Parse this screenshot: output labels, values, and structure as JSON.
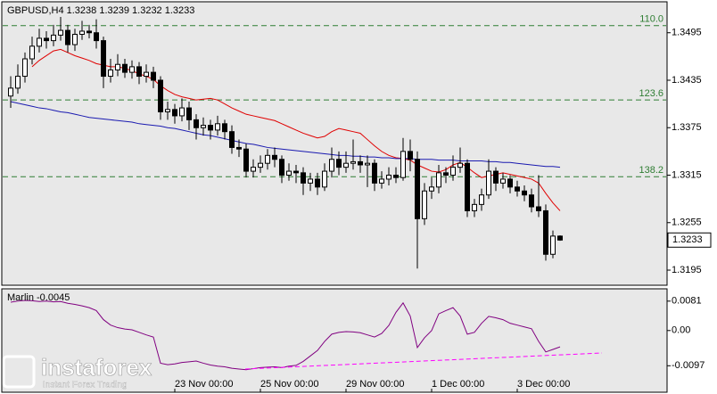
{
  "chart_data": [
    {
      "type": "candlestick",
      "title": "GBPUSD,H4  1.3238 1.3239 1.3232 1.3233",
      "categories": [
        null,
        null,
        null,
        null,
        null,
        null,
        null,
        null,
        null,
        null,
        null,
        null,
        null,
        null,
        null,
        null,
        null,
        null,
        null,
        null,
        null,
        null,
        null,
        "23 Nov 00:00",
        null,
        null,
        null,
        null,
        null,
        null,
        null,
        null,
        null,
        null,
        null,
        "25 Nov 00:00",
        null,
        null,
        null,
        null,
        null,
        null,
        null,
        null,
        null,
        null,
        null,
        "29 Nov 00:00",
        null,
        null,
        null,
        null,
        null,
        null,
        null,
        null,
        null,
        null,
        null,
        "1 Dec 00:00",
        null,
        null,
        null,
        null,
        null,
        null,
        null,
        null,
        null,
        null,
        null,
        "3 Dec 00:00",
        null,
        null,
        null,
        null,
        null,
        null
      ],
      "open": [
        1.3415,
        1.3425,
        1.344,
        1.3462,
        1.3478,
        1.3488,
        1.3485,
        1.3492,
        1.3498,
        1.348,
        1.3493,
        1.3497,
        1.3495,
        1.3485,
        1.344,
        1.3448,
        1.3455,
        1.3445,
        1.3452,
        1.344,
        1.3445,
        1.3435,
        1.3395,
        1.3398,
        1.339,
        1.34,
        1.3385,
        1.3375,
        1.3378,
        1.3372,
        1.338,
        1.337,
        1.335,
        1.3348,
        1.332,
        1.3325,
        1.333,
        1.334,
        1.3335,
        1.3315,
        1.332,
        1.3318,
        1.3305,
        1.331,
        1.33,
        1.332,
        1.3335,
        1.3325,
        1.333,
        1.3332,
        1.3328,
        1.333,
        1.3305,
        1.331,
        1.3315,
        1.3312,
        1.3345,
        1.3335,
        1.326,
        1.3295,
        1.33,
        1.3318,
        1.3315,
        1.3325,
        1.333,
        1.327,
        1.3278,
        1.329,
        1.332,
        1.3305,
        1.331,
        1.33,
        1.3295,
        1.329,
        1.3275,
        1.327,
        1.3215,
        1.3238
      ],
      "high": [
        1.344,
        1.3455,
        1.347,
        1.349,
        1.35,
        1.3497,
        1.3505,
        1.3515,
        1.3505,
        1.35,
        1.351,
        1.3505,
        1.3512,
        1.349,
        1.3462,
        1.3468,
        1.3462,
        1.346,
        1.3458,
        1.3455,
        1.3452,
        1.344,
        1.3408,
        1.3405,
        1.3412,
        1.3408,
        1.3392,
        1.3388,
        1.3385,
        1.339,
        1.3385,
        1.3378,
        1.336,
        1.3355,
        1.3335,
        1.334,
        1.3348,
        1.335,
        1.334,
        1.333,
        1.3328,
        1.3325,
        1.3318,
        1.3318,
        1.333,
        1.335,
        1.3345,
        1.3345,
        1.336,
        1.334,
        1.334,
        1.3335,
        1.332,
        1.3325,
        1.3325,
        1.3362,
        1.336,
        1.3345,
        1.3305,
        1.3312,
        1.3328,
        1.3325,
        1.334,
        1.335,
        1.3335,
        1.3285,
        1.3298,
        1.3335,
        1.3325,
        1.3318,
        1.3315,
        1.3308,
        1.3302,
        1.3298,
        1.3315,
        1.3278,
        1.3245,
        1.3239
      ],
      "low": [
        1.34,
        1.3418,
        1.3432,
        1.3455,
        1.347,
        1.3475,
        1.3478,
        1.3485,
        1.347,
        1.3472,
        1.3486,
        1.3488,
        1.3475,
        1.3425,
        1.3432,
        1.344,
        1.3438,
        1.3437,
        1.343,
        1.3432,
        1.3425,
        1.3385,
        1.3385,
        1.338,
        1.3383,
        1.3372,
        1.336,
        1.3365,
        1.336,
        1.3365,
        1.336,
        1.3342,
        1.3338,
        1.3312,
        1.3312,
        1.3318,
        1.3322,
        1.3325,
        1.3305,
        1.3308,
        1.3305,
        1.329,
        1.3295,
        1.329,
        1.3295,
        1.3312,
        1.3315,
        1.3318,
        1.3322,
        1.3318,
        1.33,
        1.3295,
        1.3298,
        1.3302,
        1.3305,
        1.3308,
        1.332,
        1.3197,
        1.3252,
        1.3285,
        1.3292,
        1.3305,
        1.3308,
        1.3318,
        1.3262,
        1.3262,
        1.327,
        1.3285,
        1.3295,
        1.3298,
        1.3292,
        1.3288,
        1.3282,
        1.3268,
        1.3262,
        1.3207,
        1.321,
        1.3232
      ],
      "close": [
        1.3425,
        1.344,
        1.3462,
        1.3478,
        1.3488,
        1.3485,
        1.3492,
        1.3498,
        1.348,
        1.3493,
        1.3497,
        1.3495,
        1.3485,
        1.344,
        1.3448,
        1.3455,
        1.3445,
        1.3452,
        1.344,
        1.3445,
        1.3435,
        1.3395,
        1.3398,
        1.339,
        1.34,
        1.3385,
        1.3375,
        1.3378,
        1.3372,
        1.338,
        1.337,
        1.335,
        1.3348,
        1.332,
        1.3325,
        1.333,
        1.334,
        1.3335,
        1.3315,
        1.332,
        1.3318,
        1.3305,
        1.331,
        1.33,
        1.332,
        1.3335,
        1.3325,
        1.333,
        1.3332,
        1.3328,
        1.333,
        1.3305,
        1.331,
        1.3315,
        1.3312,
        1.3345,
        1.3335,
        1.326,
        1.3295,
        1.33,
        1.3318,
        1.3315,
        1.3325,
        1.333,
        1.327,
        1.3278,
        1.329,
        1.332,
        1.3305,
        1.331,
        1.33,
        1.3295,
        1.329,
        1.3275,
        1.327,
        1.3215,
        1.3238,
        1.3233
      ],
      "up_color": "#ffffff",
      "down_color": "#000000",
      "series": [
        {
          "color": "#e00000",
          "values": [
            null,
            null,
            null,
            1.3452,
            1.346,
            1.3466,
            1.3472,
            1.3474,
            1.347,
            1.3466,
            1.3463,
            1.346,
            1.3456,
            1.3454,
            1.3452,
            1.3452,
            1.345,
            1.3447,
            1.3443,
            1.344,
            1.3436,
            1.3428,
            1.3422,
            1.3417,
            1.3414,
            1.3412,
            1.341,
            1.3411,
            1.3412,
            1.341,
            1.3405,
            1.34,
            1.3396,
            1.3392,
            1.339,
            1.3388,
            1.3386,
            1.3384,
            1.338,
            1.3376,
            1.3372,
            1.3368,
            1.3365,
            1.3362,
            1.3364,
            1.337,
            1.3374,
            1.3372,
            1.337,
            1.3368,
            1.336,
            1.3352,
            1.3345,
            1.334,
            1.3337,
            1.3336,
            1.3334,
            1.3328,
            1.3324,
            1.332,
            1.3319,
            1.3322,
            1.3328,
            1.3331,
            1.3325,
            1.3318,
            1.3312,
            1.3314,
            1.3316,
            1.3318,
            1.3316,
            1.3314,
            1.3312,
            1.331,
            1.3305,
            1.3292,
            1.328,
            1.327
          ]
        },
        {
          "color": "#1a1ab0",
          "values": [
            1.3408,
            1.3406,
            1.3404,
            1.3402,
            1.34,
            1.3399,
            1.3397,
            1.3395,
            1.3394,
            1.3392,
            1.339,
            1.3388,
            1.3387,
            1.3386,
            1.3385,
            1.3384,
            1.3383,
            1.3382,
            1.338,
            1.3379,
            1.3378,
            1.3377,
            1.3375,
            1.3374,
            1.3372,
            1.337,
            1.3368,
            1.3366,
            1.3365,
            1.3363,
            1.3361,
            1.3359,
            1.3357,
            1.3355,
            1.3354,
            1.3352,
            1.335,
            1.3349,
            1.3348,
            1.3347,
            1.3346,
            1.3345,
            1.3344,
            1.3343,
            1.3342,
            1.3341,
            1.334,
            1.334,
            1.3339,
            1.3339,
            1.3338,
            1.3338,
            1.3337,
            1.3337,
            1.3336,
            1.3336,
            1.3336,
            1.3335,
            1.3335,
            1.3335,
            1.3334,
            1.3334,
            1.3334,
            1.3333,
            1.3333,
            1.3333,
            1.3333,
            1.3332,
            1.3332,
            1.3331,
            1.3331,
            1.333,
            1.3329,
            1.3328,
            1.3327,
            1.3326,
            1.3326,
            1.3325
          ]
        }
      ],
      "levels": [
        {
          "value": 1.3504,
          "label": "110.0"
        },
        {
          "value": 1.341,
          "label": "123.6"
        },
        {
          "value": 1.3313,
          "label": "138.2"
        }
      ],
      "level_color": "#2e7d32",
      "ylim": [
        1.3177,
        1.3533
      ],
      "yticks": [
        1.3495,
        1.3435,
        1.3375,
        1.3315,
        1.3255,
        1.3195
      ]
    },
    {
      "type": "line",
      "title": "Marlin -0.0045",
      "series": [
        {
          "color": "#800080",
          "values": [
            0.0078,
            0.0081,
            0.0083,
            0.0082,
            0.008,
            0.0081,
            0.0079,
            0.008,
            0.0075,
            0.0072,
            0.0068,
            0.0063,
            0.0055,
            0.003,
            0.0015,
            0.0008,
            0.0004,
            0.0002,
            -0.0005,
            -0.0012,
            -0.0018,
            -0.009,
            -0.0094,
            -0.0092,
            -0.0088,
            -0.0086,
            -0.0084,
            -0.009,
            -0.0095,
            -0.0098,
            -0.01,
            -0.0104,
            -0.0106,
            -0.0108,
            -0.0105,
            -0.0102,
            -0.0101,
            -0.01,
            -0.0102,
            -0.0098,
            -0.0096,
            -0.0085,
            -0.007,
            -0.0055,
            -0.003,
            -0.001,
            -0.0005,
            -0.0003,
            -0.0004,
            -0.0006,
            -0.0012,
            -0.0018,
            -0.0008,
            0.0014,
            0.005,
            0.0076,
            0.004,
            -0.0047,
            -0.002,
            0.0,
            0.0046,
            0.0055,
            0.0063,
            0.004,
            -0.001,
            -0.0005,
            0.002,
            0.0039,
            0.0035,
            0.003,
            0.002,
            0.0015,
            0.001,
            0.0005,
            -0.003,
            -0.0059,
            -0.0052,
            -0.0045
          ]
        }
      ],
      "ylim": [
        -0.0165,
        0.011
      ],
      "yticks": [
        0.0081,
        {
          "value": 0,
          "label": "0.00"
        },
        -0.0097
      ]
    }
  ],
  "watermark": {
    "brand": "instaforex",
    "tagline": "Instant Forex Trading"
  }
}
